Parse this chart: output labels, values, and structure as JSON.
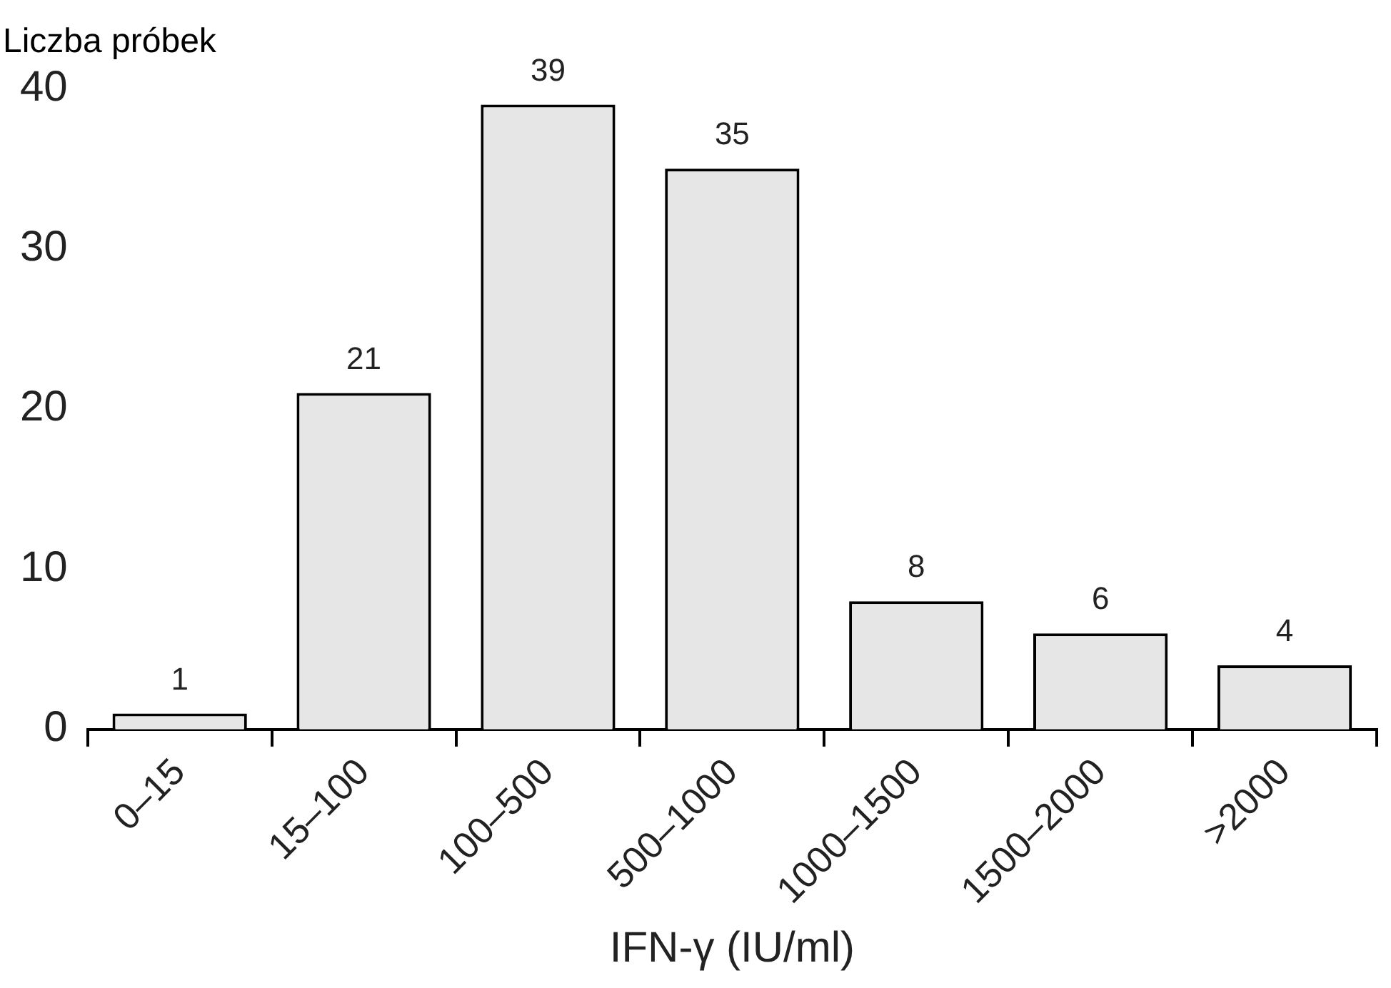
{
  "chart_data": {
    "type": "bar",
    "ylabel": "Liczba próbek",
    "xlabel": "IFN-γ (IU/ml)",
    "categories": [
      "0–15",
      "15–100",
      "100–500",
      "500–1000",
      "1000–1500",
      "1500–2000",
      ">2000"
    ],
    "values": [
      1,
      21,
      39,
      35,
      8,
      6,
      4
    ],
    "color": "#e6e6e6",
    "ylim": [
      0,
      40
    ],
    "yticks": [
      0,
      10,
      20,
      30,
      40
    ],
    "grid": false,
    "legend": false,
    "data_labels": true
  }
}
